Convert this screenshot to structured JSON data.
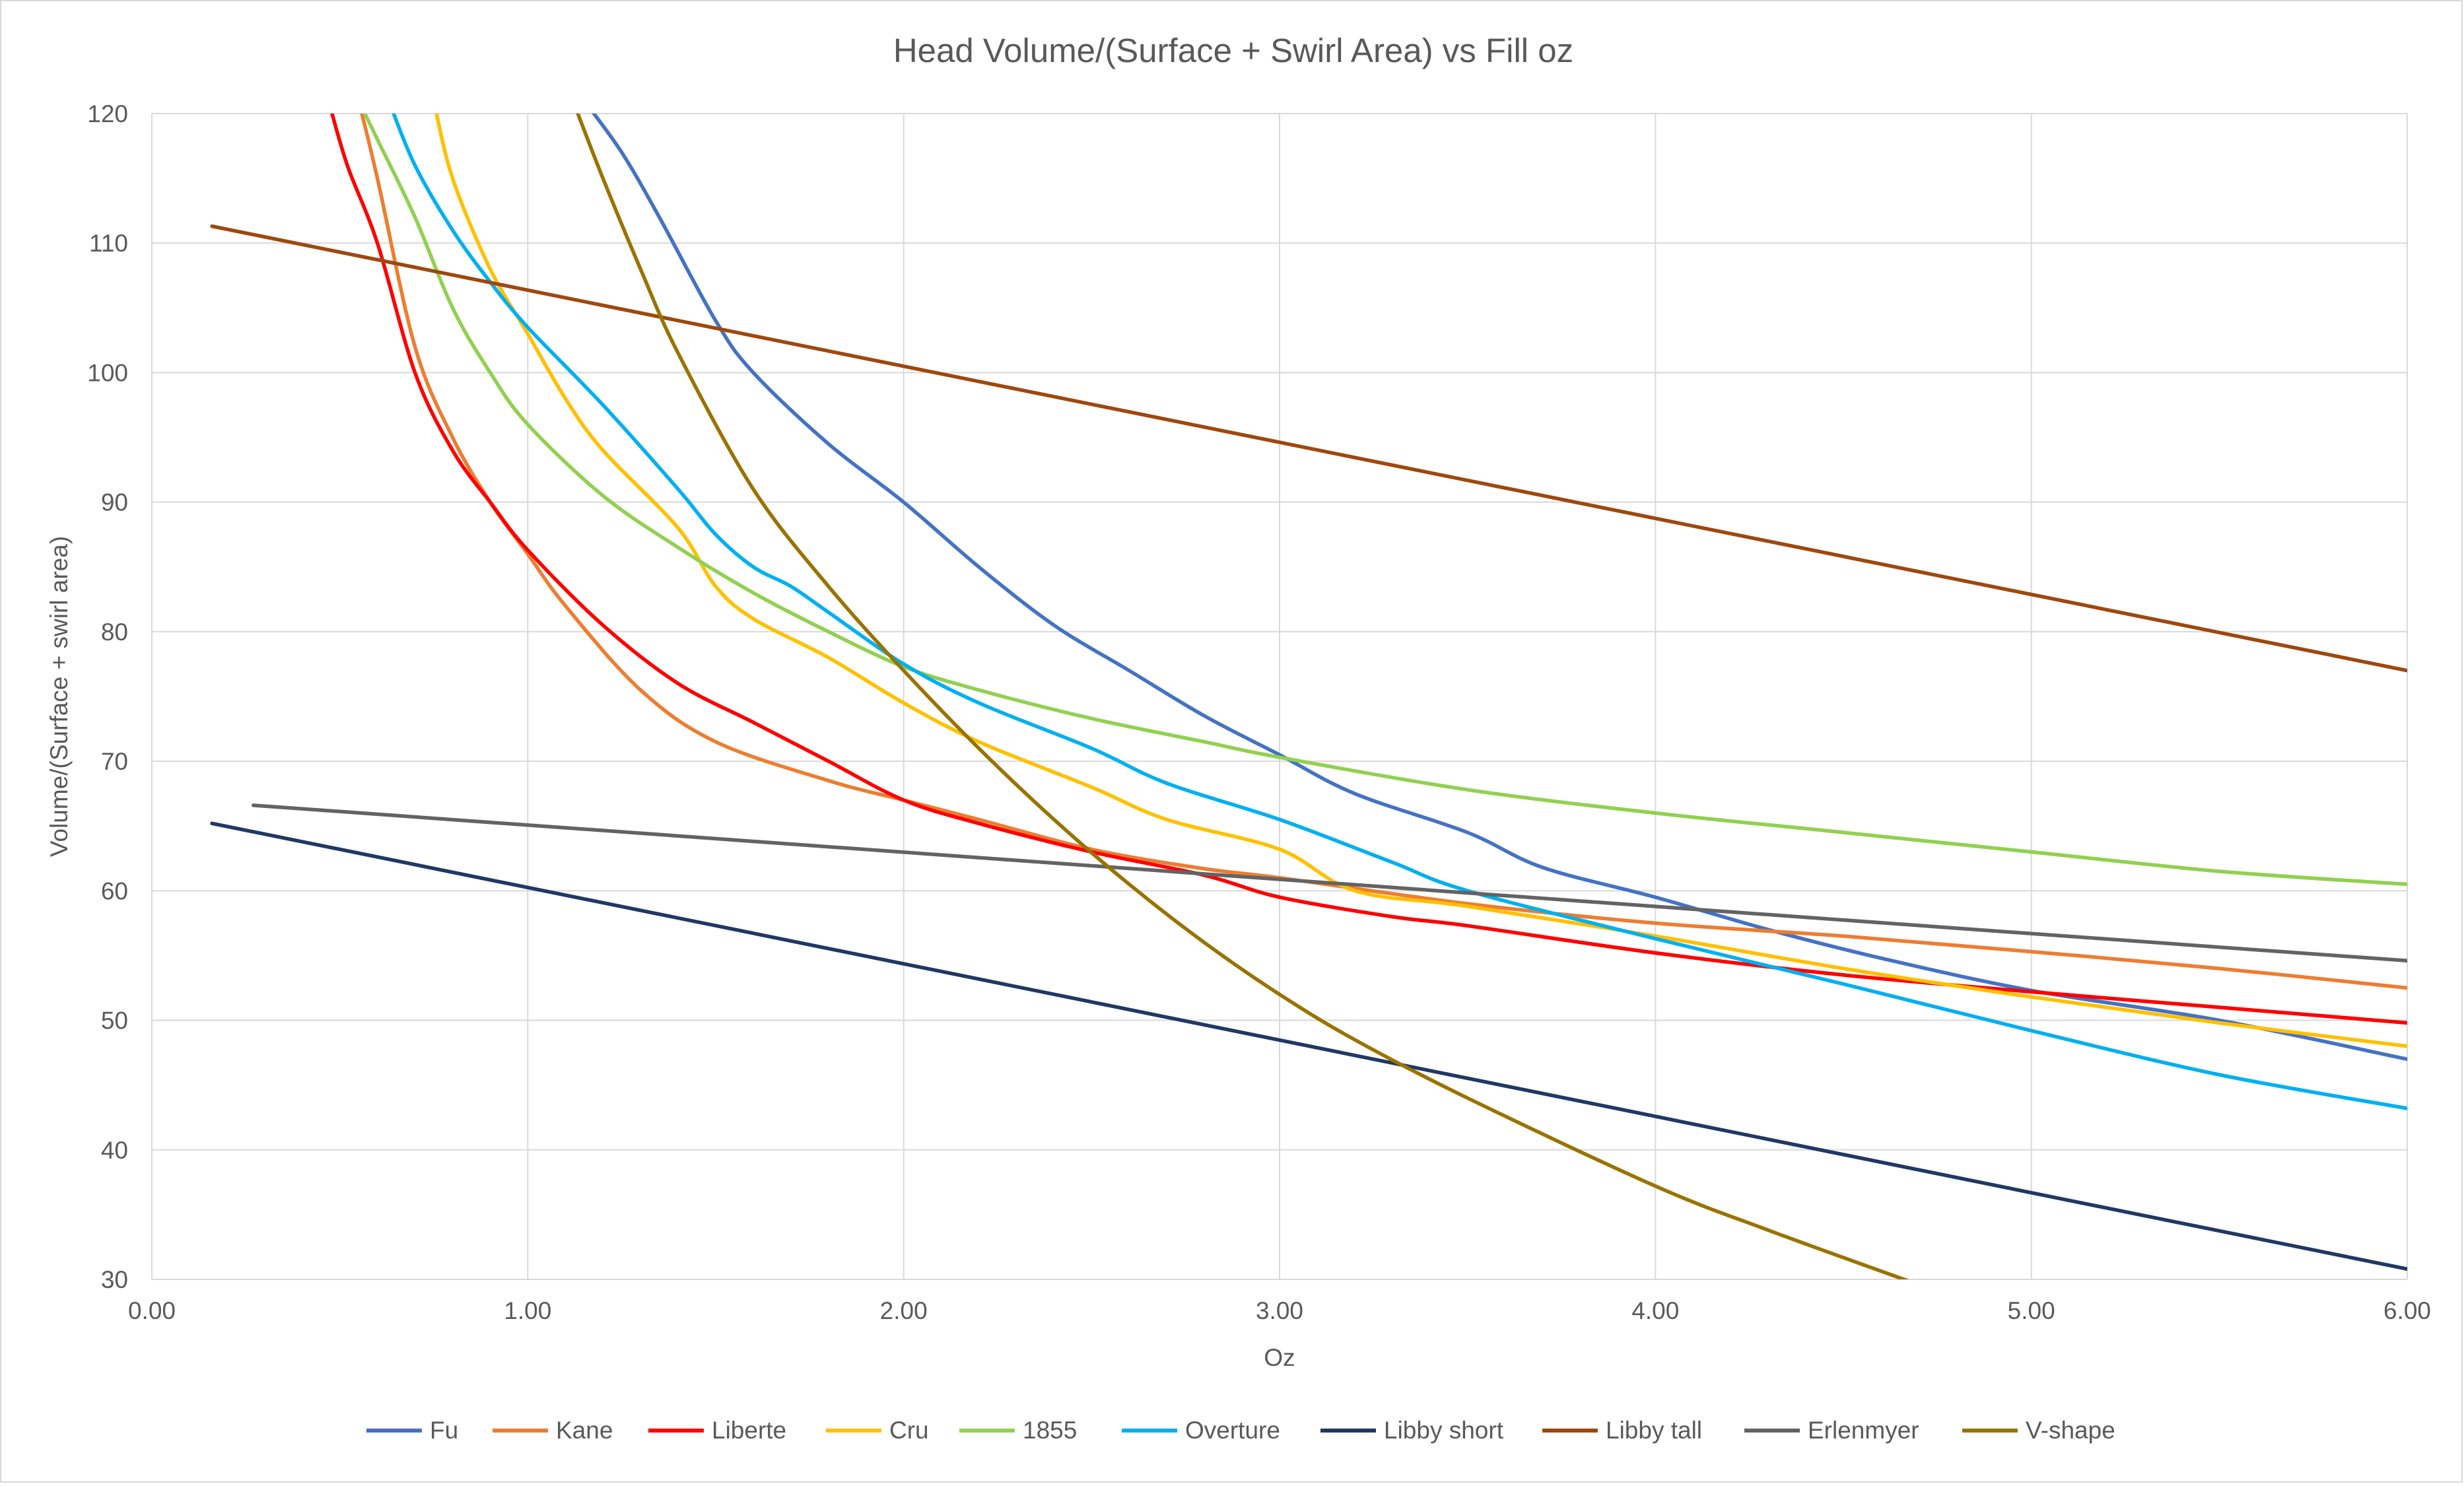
{
  "chart_data": {
    "type": "line",
    "title": "Head Volume/(Surface + Swirl Area) vs Fill oz",
    "xlabel": "Oz",
    "ylabel": "Volume/(Surface + swirl area)",
    "xlim": [
      0,
      6
    ],
    "ylim": [
      30,
      120
    ],
    "x_ticks": [
      "0.00",
      "1.00",
      "2.00",
      "3.00",
      "4.00",
      "5.00",
      "6.00"
    ],
    "y_ticks": [
      "30",
      "40",
      "50",
      "60",
      "70",
      "80",
      "90",
      "100",
      "110",
      "120"
    ],
    "grid": "on",
    "legend_position": "bottom",
    "series": [
      {
        "name": "Fu",
        "color": "#4472C4",
        "points": [
          [
            1.15,
            121
          ],
          [
            1.25,
            117
          ],
          [
            1.35,
            112
          ],
          [
            1.5,
            104
          ],
          [
            1.6,
            100
          ],
          [
            1.8,
            94.5
          ],
          [
            2.0,
            90
          ],
          [
            2.2,
            85
          ],
          [
            2.4,
            80.5
          ],
          [
            2.6,
            77
          ],
          [
            2.8,
            73.5
          ],
          [
            3.0,
            70.5
          ],
          [
            3.2,
            67.5
          ],
          [
            3.5,
            64.5
          ],
          [
            3.7,
            61.8
          ],
          [
            4.0,
            59.5
          ],
          [
            4.3,
            57
          ],
          [
            4.6,
            54.8
          ],
          [
            5.0,
            52.3
          ],
          [
            5.5,
            50
          ],
          [
            6.0,
            47
          ]
        ]
      },
      {
        "name": "Kane",
        "color": "#ED7D31",
        "points": [
          [
            0.55,
            121
          ],
          [
            0.6,
            115
          ],
          [
            0.7,
            102
          ],
          [
            0.8,
            95
          ],
          [
            0.9,
            90
          ],
          [
            1.0,
            86
          ],
          [
            1.1,
            82
          ],
          [
            1.3,
            75.5
          ],
          [
            1.5,
            71.5
          ],
          [
            1.8,
            68.5
          ],
          [
            2.0,
            67
          ],
          [
            2.2,
            65.5
          ],
          [
            2.5,
            63.2
          ],
          [
            2.8,
            61.7
          ],
          [
            3.0,
            61
          ],
          [
            3.5,
            59
          ],
          [
            4.0,
            57.5
          ],
          [
            4.5,
            56.5
          ],
          [
            5.0,
            55.3
          ],
          [
            5.5,
            54
          ],
          [
            6.0,
            52.5
          ]
        ]
      },
      {
        "name": "Liberte",
        "color": "#FF0000",
        "points": [
          [
            0.47,
            121
          ],
          [
            0.52,
            116
          ],
          [
            0.6,
            110
          ],
          [
            0.7,
            100
          ],
          [
            0.8,
            94
          ],
          [
            0.9,
            90
          ],
          [
            1.0,
            86.3
          ],
          [
            1.2,
            80.5
          ],
          [
            1.4,
            76
          ],
          [
            1.6,
            73
          ],
          [
            1.8,
            70
          ],
          [
            2.0,
            67
          ],
          [
            2.2,
            65.2
          ],
          [
            2.5,
            63
          ],
          [
            2.8,
            61.2
          ],
          [
            3.0,
            59.5
          ],
          [
            3.3,
            58
          ],
          [
            3.5,
            57.3
          ],
          [
            4.0,
            55.2
          ],
          [
            4.5,
            53.5
          ],
          [
            5.0,
            52.2
          ],
          [
            5.5,
            51
          ],
          [
            6.0,
            49.8
          ]
        ]
      },
      {
        "name": "Cru",
        "color": "#FFC000",
        "points": [
          [
            0.75,
            121
          ],
          [
            0.8,
            115
          ],
          [
            0.9,
            108
          ],
          [
            1.0,
            103
          ],
          [
            1.1,
            98
          ],
          [
            1.2,
            94
          ],
          [
            1.4,
            88
          ],
          [
            1.5,
            83.5
          ],
          [
            1.6,
            81
          ],
          [
            1.8,
            78
          ],
          [
            2.0,
            74.5
          ],
          [
            2.2,
            71.5
          ],
          [
            2.5,
            68
          ],
          [
            2.7,
            65.5
          ],
          [
            3.0,
            63.2
          ],
          [
            3.2,
            60
          ],
          [
            3.5,
            58.8
          ],
          [
            4.0,
            56.5
          ],
          [
            4.5,
            54
          ],
          [
            5.0,
            51.8
          ],
          [
            5.5,
            49.8
          ],
          [
            6.0,
            48
          ]
        ]
      },
      {
        "name": "1855",
        "color": "#92D050",
        "points": [
          [
            0.55,
            121
          ],
          [
            0.6,
            118
          ],
          [
            0.7,
            112
          ],
          [
            0.8,
            105
          ],
          [
            0.9,
            100
          ],
          [
            1.0,
            96
          ],
          [
            1.2,
            90.5
          ],
          [
            1.4,
            86.5
          ],
          [
            1.6,
            83
          ],
          [
            1.8,
            80
          ],
          [
            2.0,
            77.3
          ],
          [
            2.2,
            75.5
          ],
          [
            2.5,
            73.3
          ],
          [
            2.8,
            71.5
          ],
          [
            3.0,
            70.3
          ],
          [
            3.5,
            67.8
          ],
          [
            4.0,
            66
          ],
          [
            4.5,
            64.5
          ],
          [
            5.0,
            63
          ],
          [
            5.5,
            61.5
          ],
          [
            6.0,
            60.5
          ]
        ]
      },
      {
        "name": "Overture",
        "color": "#00B0F0",
        "points": [
          [
            0.63,
            121
          ],
          [
            0.7,
            116
          ],
          [
            0.8,
            111
          ],
          [
            0.9,
            107
          ],
          [
            1.0,
            103.5
          ],
          [
            1.2,
            97.5
          ],
          [
            1.4,
            91
          ],
          [
            1.5,
            87.5
          ],
          [
            1.6,
            85
          ],
          [
            1.7,
            83.5
          ],
          [
            1.8,
            81.5
          ],
          [
            2.0,
            77.5
          ],
          [
            2.2,
            74.5
          ],
          [
            2.5,
            71
          ],
          [
            2.7,
            68.3
          ],
          [
            3.0,
            65.5
          ],
          [
            3.3,
            62.2
          ],
          [
            3.5,
            60
          ],
          [
            4.0,
            56.3
          ],
          [
            4.5,
            52.8
          ],
          [
            5.0,
            49.2
          ],
          [
            5.5,
            45.8
          ],
          [
            6.0,
            43.2
          ]
        ]
      },
      {
        "name": "Libby short",
        "color": "#203864",
        "points": [
          [
            0.16,
            65.2
          ],
          [
            6.0,
            30.8
          ]
        ]
      },
      {
        "name": "Libby tall",
        "color": "#9E480E",
        "points": [
          [
            0.16,
            111.3
          ],
          [
            6.0,
            77
          ]
        ]
      },
      {
        "name": "Erlenmyer",
        "color": "#636363",
        "points": [
          [
            0.27,
            66.6
          ],
          [
            6.0,
            54.6
          ]
        ]
      },
      {
        "name": "V-shape",
        "color": "#997300",
        "points": [
          [
            1.12,
            121
          ],
          [
            1.2,
            115
          ],
          [
            1.3,
            108
          ],
          [
            1.4,
            101.5
          ],
          [
            1.6,
            91
          ],
          [
            1.8,
            83.5
          ],
          [
            2.0,
            77
          ],
          [
            2.2,
            71
          ],
          [
            2.4,
            65.5
          ],
          [
            2.6,
            60.5
          ],
          [
            2.8,
            56
          ],
          [
            3.0,
            52
          ],
          [
            3.2,
            48.5
          ],
          [
            3.5,
            44
          ],
          [
            4.0,
            37.2
          ],
          [
            4.3,
            33.8
          ],
          [
            4.68,
            29.8
          ]
        ]
      }
    ]
  }
}
